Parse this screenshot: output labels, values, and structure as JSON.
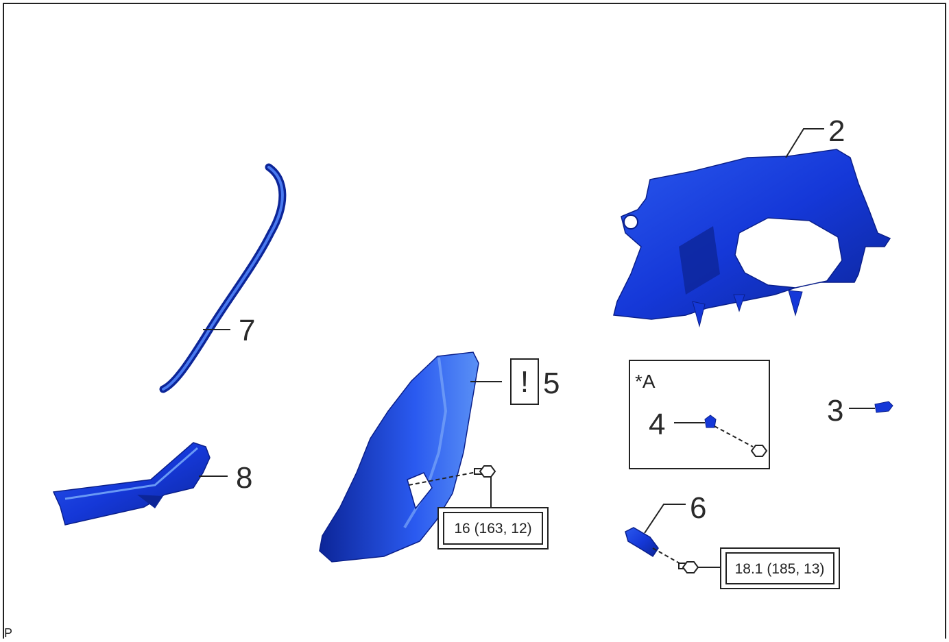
{
  "callouts": {
    "c2": "2",
    "c3": "3",
    "c4": "4",
    "c5": "5",
    "c6": "6",
    "c7": "7",
    "c8": "8"
  },
  "caution_mark": "!",
  "inset_label": "*A",
  "torque_specs": {
    "t1": "16 (163, 12)",
    "t2": "18.1 (185, 13)"
  },
  "corner_code": "P",
  "colors": {
    "part_fill": "#1538d8",
    "part_dark": "#0a1f8a",
    "part_light": "#4a7af0",
    "line": "#222222"
  }
}
